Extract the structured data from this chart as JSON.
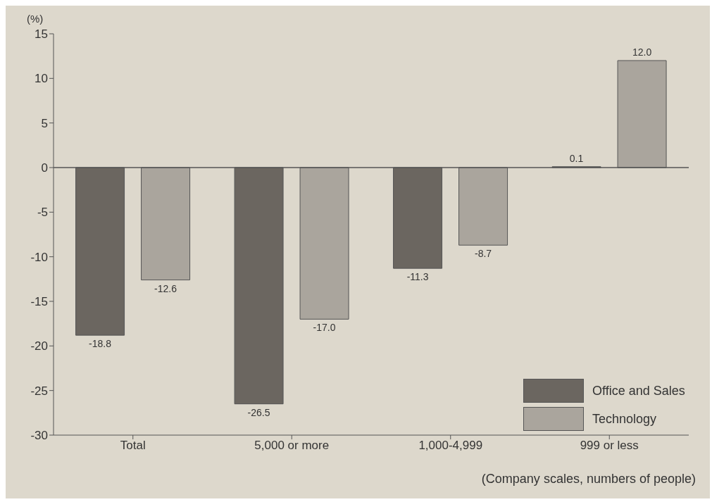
{
  "chart_data": {
    "type": "bar",
    "ylabel": "(%)",
    "xlabel": "(Company scales, numbers of people)",
    "categories": [
      "Total",
      "5,000 or more",
      "1,000-4,999",
      "999 or less"
    ],
    "series": [
      {
        "name": "Office and Sales",
        "color": "#6b6660",
        "values": [
          -18.8,
          -26.5,
          -11.3,
          0.1
        ],
        "value_labels": [
          "-18.8",
          "-26.5",
          "-11.3",
          "0.1"
        ]
      },
      {
        "name": "Technology",
        "color": "#aaa59d",
        "values": [
          -12.6,
          -17.0,
          -8.7,
          12.0
        ],
        "value_labels": [
          "-12.6",
          "-17.0",
          "-8.7",
          "12.0"
        ]
      }
    ],
    "ylim": [
      -30,
      15
    ],
    "yticks": [
      -30,
      -25,
      -20,
      -15,
      -10,
      -5,
      0,
      5,
      10,
      15
    ],
    "ref_lines": [
      {
        "axis": "y",
        "value": 0,
        "color": "#555555"
      }
    ],
    "grid": false,
    "legend": "bottom right"
  }
}
